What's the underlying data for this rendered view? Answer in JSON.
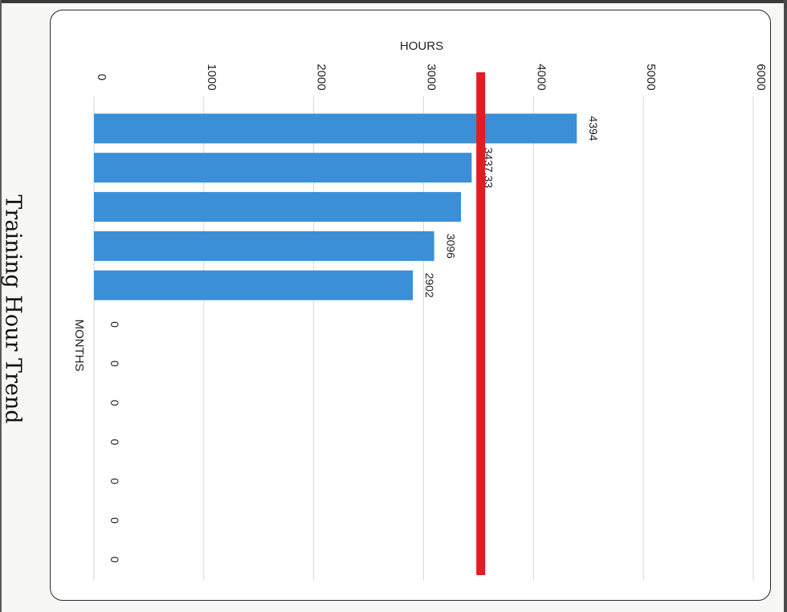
{
  "page": {
    "title": "Training Hour Trend"
  },
  "chart_data": {
    "type": "bar",
    "orientation": "horizontal",
    "rotated_on_page": "90deg clockwise",
    "title": "",
    "value_axis_label": "HOURS",
    "category_axis_label": "MONTHS",
    "value_range": [
      0,
      6000
    ],
    "ticks": [
      "0",
      "1000",
      "2000",
      "3000",
      "4000",
      "5000",
      "6000"
    ],
    "grid": true,
    "colors": {
      "bar": "#3a8fd6",
      "reference_line": "#e31b23"
    },
    "reference_line_value": 3520,
    "bars": [
      {
        "value": 4394,
        "label": "4394"
      },
      {
        "value": 3437.33,
        "label": "3437.33"
      },
      {
        "value": 3340,
        "label": ""
      },
      {
        "value": 3096,
        "label": "3096"
      },
      {
        "value": 2902,
        "label": "2902"
      },
      {
        "value": 0,
        "label": "0"
      },
      {
        "value": 0,
        "label": "0"
      },
      {
        "value": 0,
        "label": "0"
      },
      {
        "value": 0,
        "label": "0"
      },
      {
        "value": 0,
        "label": "0"
      },
      {
        "value": 0,
        "label": "0"
      },
      {
        "value": 0,
        "label": "0"
      }
    ]
  }
}
